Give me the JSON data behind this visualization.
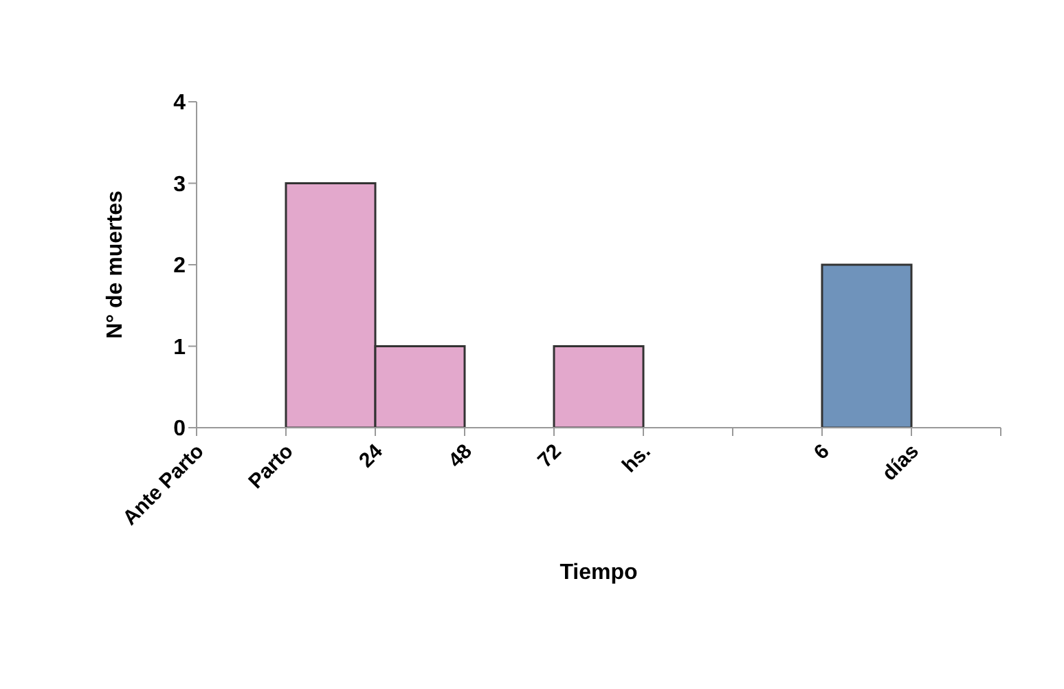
{
  "chart_data": {
    "type": "bar",
    "xlabel": "Tiempo",
    "ylabel": "N° de muertes",
    "categories": [
      "Ante Parto",
      "Parto",
      "24",
      "48",
      "72",
      "hs.",
      null,
      "6",
      "días"
    ],
    "values": [
      null,
      3,
      1,
      null,
      1,
      null,
      null,
      2,
      null
    ],
    "colors": [
      "#e3a8cc",
      "#e3a8cc",
      "#e3a8cc",
      "#e3a8cc",
      "#e3a8cc",
      "#e3a8cc",
      "#e3a8cc",
      "#6f93bb",
      "#e3a8cc"
    ],
    "ylim": [
      0,
      4
    ],
    "yticks": [
      0,
      1,
      2,
      3,
      4
    ]
  }
}
